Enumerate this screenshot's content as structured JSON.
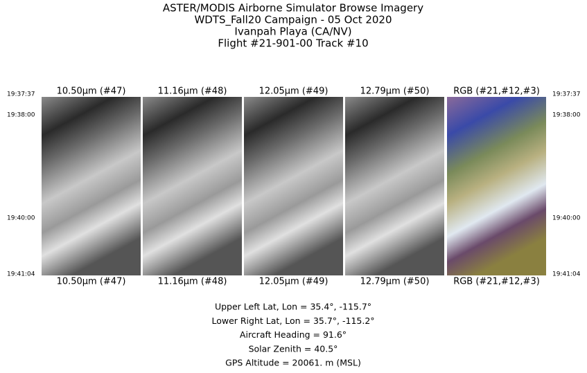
{
  "header": {
    "title_lines": [
      "ASTER/MODIS Airborne Simulator Browse Imagery",
      "WDTS_Fall20 Campaign - 05 Oct 2020",
      "Ivanpah Playa (CA/NV)",
      "Flight #21-901-00 Track #10"
    ]
  },
  "panels": [
    {
      "label_top": "10.50μm (#47)",
      "label_bottom": "10.50μm (#47)"
    },
    {
      "label_top": "11.16μm (#48)",
      "label_bottom": "11.16μm (#48)"
    },
    {
      "label_top": "12.05μm (#49)",
      "label_bottom": "12.05μm (#49)"
    },
    {
      "label_top": "12.79μm (#50)",
      "label_bottom": "12.79μm (#50)"
    },
    {
      "label_top": "RGB (#21,#12,#3)",
      "label_bottom": "RGB (#21,#12,#3)"
    }
  ],
  "times_left": [
    "19:37:37",
    "19:38:00",
    "19:40:00",
    "19:41:04"
  ],
  "times_right": [
    "19:37:37",
    "19:38:00",
    "19:40:00",
    "19:41:04"
  ],
  "info": [
    "Upper Left Lat, Lon =   35.4°, -115.7°",
    "Lower Right Lat, Lon =   35.7°, -115.2°",
    "Aircraft Heading =   91.6°",
    "Solar Zenith =   40.5°",
    "GPS Altitude =  20061. m (MSL)"
  ]
}
